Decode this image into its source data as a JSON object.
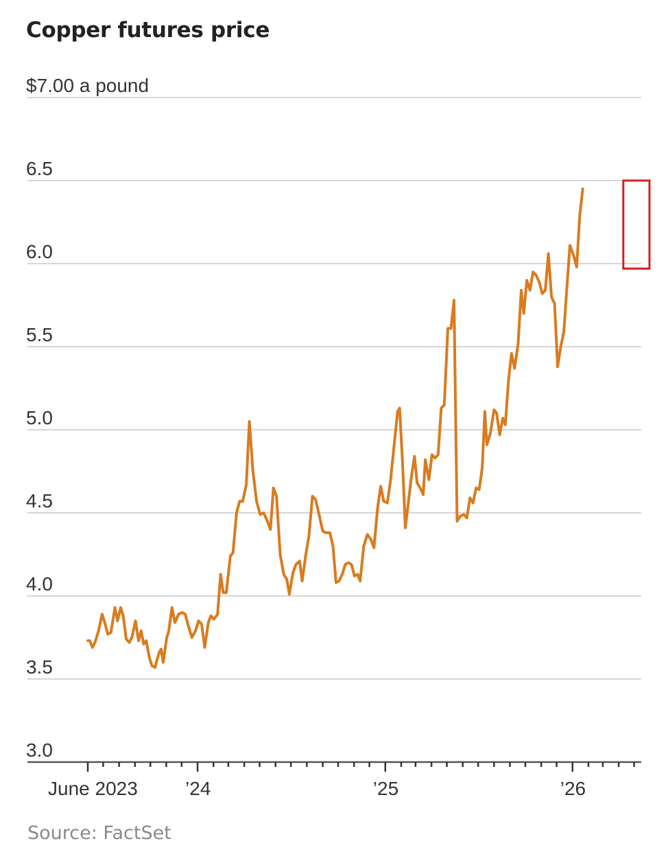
{
  "chart_data": {
    "type": "line",
    "title": "Copper futures price",
    "unit_label": "$7.00 a pound",
    "source": "Source: FactSet",
    "ylim": [
      3.0,
      7.0
    ],
    "y_ticks": [
      {
        "value": 7.0,
        "label": "$7.00 a pound"
      },
      {
        "value": 6.5,
        "label": "6.5"
      },
      {
        "value": 6.0,
        "label": "6.0"
      },
      {
        "value": 5.5,
        "label": "5.5"
      },
      {
        "value": 5.0,
        "label": "5.0"
      },
      {
        "value": 4.5,
        "label": "4.5"
      },
      {
        "value": 4.0,
        "label": "4.0"
      },
      {
        "value": 3.5,
        "label": "3.5"
      },
      {
        "value": 3.0,
        "label": "3.0"
      }
    ],
    "x_range": [
      "2023-06-01",
      "2026-05-15"
    ],
    "x_tick_labels": [
      {
        "date": "2023-06-01",
        "label": "June 2023"
      },
      {
        "date": "2024-01-01",
        "label": "’24"
      },
      {
        "date": "2025-01-01",
        "label": "’25"
      },
      {
        "date": "2026-01-01",
        "label": "’26"
      }
    ],
    "x_minor_ticks": [
      "2023-07-01",
      "2023-08-01",
      "2023-09-01",
      "2023-10-01",
      "2023-11-01",
      "2023-12-01",
      "2024-02-01",
      "2024-03-01",
      "2024-04-01",
      "2024-05-01",
      "2024-06-01",
      "2024-07-01",
      "2024-08-01",
      "2024-09-01",
      "2024-10-01",
      "2024-11-01",
      "2024-12-01",
      "2025-02-01",
      "2025-03-01",
      "2025-04-01",
      "2025-05-01",
      "2025-06-01",
      "2025-07-01",
      "2025-08-01",
      "2025-09-01",
      "2025-10-01",
      "2025-11-01",
      "2025-12-01",
      "2026-02-01",
      "2026-03-01",
      "2026-04-01",
      "2026-05-01"
    ],
    "grid": true,
    "line_color": "#d97b1f",
    "highlight_color": "#d32020",
    "highlight_range": {
      "x": [
        "2026-04-10",
        "2026-05-15"
      ],
      "y": [
        5.97,
        6.5
      ]
    },
    "series": [
      {
        "values": [
          [
            "2023-06-01",
            3.73
          ],
          [
            "2023-06-05",
            3.73
          ],
          [
            "2023-06-10",
            3.69
          ],
          [
            "2023-06-15",
            3.72
          ],
          [
            "2023-06-22",
            3.79
          ],
          [
            "2023-06-29",
            3.89
          ],
          [
            "2023-07-05",
            3.83
          ],
          [
            "2023-07-10",
            3.77
          ],
          [
            "2023-07-16",
            3.78
          ],
          [
            "2023-07-24",
            3.93
          ],
          [
            "2023-07-29",
            3.85
          ],
          [
            "2023-08-04",
            3.93
          ],
          [
            "2023-08-09",
            3.88
          ],
          [
            "2023-08-15",
            3.74
          ],
          [
            "2023-08-21",
            3.72
          ],
          [
            "2023-08-26",
            3.75
          ],
          [
            "2023-09-02",
            3.85
          ],
          [
            "2023-09-08",
            3.73
          ],
          [
            "2023-09-13",
            3.79
          ],
          [
            "2023-09-18",
            3.71
          ],
          [
            "2023-09-23",
            3.73
          ],
          [
            "2023-09-29",
            3.63
          ],
          [
            "2023-10-04",
            3.58
          ],
          [
            "2023-10-10",
            3.57
          ],
          [
            "2023-10-18",
            3.66
          ],
          [
            "2023-10-22",
            3.68
          ],
          [
            "2023-10-26",
            3.6
          ],
          [
            "2023-11-02",
            3.75
          ],
          [
            "2023-11-06",
            3.79
          ],
          [
            "2023-11-12",
            3.93
          ],
          [
            "2023-11-18",
            3.84
          ],
          [
            "2023-11-25",
            3.89
          ],
          [
            "2023-12-02",
            3.9
          ],
          [
            "2023-12-08",
            3.89
          ],
          [
            "2023-12-14",
            3.82
          ],
          [
            "2023-12-21",
            3.75
          ],
          [
            "2023-12-28",
            3.79
          ],
          [
            "2024-01-03",
            3.85
          ],
          [
            "2024-01-09",
            3.83
          ],
          [
            "2024-01-15",
            3.69
          ],
          [
            "2024-01-22",
            3.84
          ],
          [
            "2024-01-27",
            3.88
          ],
          [
            "2024-02-02",
            3.86
          ],
          [
            "2024-02-09",
            3.89
          ],
          [
            "2024-02-15",
            4.13
          ],
          [
            "2024-02-20",
            4.02
          ],
          [
            "2024-02-26",
            4.02
          ],
          [
            "2024-03-05",
            4.24
          ],
          [
            "2024-03-10",
            4.26
          ],
          [
            "2024-03-17",
            4.5
          ],
          [
            "2024-03-23",
            4.57
          ],
          [
            "2024-03-29",
            4.57
          ],
          [
            "2024-04-05",
            4.67
          ],
          [
            "2024-04-11",
            5.05
          ],
          [
            "2024-04-18",
            4.75
          ],
          [
            "2024-04-25",
            4.57
          ],
          [
            "2024-05-02",
            4.49
          ],
          [
            "2024-05-09",
            4.5
          ],
          [
            "2024-05-16",
            4.45
          ],
          [
            "2024-05-22",
            4.4
          ],
          [
            "2024-05-28",
            4.65
          ],
          [
            "2024-06-03",
            4.6
          ],
          [
            "2024-06-10",
            4.25
          ],
          [
            "2024-06-17",
            4.13
          ],
          [
            "2024-06-23",
            4.1
          ],
          [
            "2024-06-28",
            4.01
          ],
          [
            "2024-07-05",
            4.14
          ],
          [
            "2024-07-11",
            4.19
          ],
          [
            "2024-07-18",
            4.21
          ],
          [
            "2024-07-23",
            4.09
          ],
          [
            "2024-07-30",
            4.25
          ],
          [
            "2024-08-05",
            4.36
          ],
          [
            "2024-08-12",
            4.6
          ],
          [
            "2024-08-18",
            4.58
          ],
          [
            "2024-08-25",
            4.49
          ],
          [
            "2024-09-01",
            4.39
          ],
          [
            "2024-09-08",
            4.38
          ],
          [
            "2024-09-15",
            4.38
          ],
          [
            "2024-09-21",
            4.3
          ],
          [
            "2024-09-27",
            4.08
          ],
          [
            "2024-10-03",
            4.09
          ],
          [
            "2024-10-09",
            4.13
          ],
          [
            "2024-10-15",
            4.19
          ],
          [
            "2024-10-21",
            4.2
          ],
          [
            "2024-10-27",
            4.19
          ],
          [
            "2024-11-02",
            4.12
          ],
          [
            "2024-11-08",
            4.13
          ],
          [
            "2024-11-13",
            4.09
          ],
          [
            "2024-11-20",
            4.3
          ],
          [
            "2024-11-27",
            4.37
          ],
          [
            "2024-12-04",
            4.34
          ],
          [
            "2024-12-10",
            4.29
          ],
          [
            "2024-12-17",
            4.53
          ],
          [
            "2024-12-23",
            4.66
          ],
          [
            "2024-12-29",
            4.57
          ],
          [
            "2025-01-05",
            4.56
          ],
          [
            "2025-01-11",
            4.69
          ],
          [
            "2025-01-18",
            4.9
          ],
          [
            "2025-01-25",
            5.11
          ],
          [
            "2025-01-29",
            5.13
          ],
          [
            "2025-02-04",
            4.78
          ],
          [
            "2025-02-09",
            4.41
          ],
          [
            "2025-02-15",
            4.56
          ],
          [
            "2025-02-21",
            4.72
          ],
          [
            "2025-02-27",
            4.84
          ],
          [
            "2025-03-04",
            4.68
          ],
          [
            "2025-03-10",
            4.65
          ],
          [
            "2025-03-16",
            4.61
          ],
          [
            "2025-03-20",
            4.82
          ],
          [
            "2025-03-27",
            4.7
          ],
          [
            "2025-04-02",
            4.85
          ],
          [
            "2025-04-08",
            4.83
          ],
          [
            "2025-04-14",
            4.85
          ],
          [
            "2025-04-20",
            5.13
          ],
          [
            "2025-04-26",
            5.15
          ],
          [
            "2025-05-03",
            5.61
          ],
          [
            "2025-05-09",
            5.61
          ],
          [
            "2025-05-15",
            5.78
          ],
          [
            "2025-05-21",
            4.45
          ],
          [
            "2025-05-27",
            4.48
          ],
          [
            "2025-06-03",
            4.49
          ],
          [
            "2025-06-09",
            4.47
          ],
          [
            "2025-06-15",
            4.59
          ],
          [
            "2025-06-21",
            4.56
          ],
          [
            "2025-06-27",
            4.65
          ],
          [
            "2025-07-03",
            4.64
          ],
          [
            "2025-07-09",
            4.77
          ],
          [
            "2025-07-14",
            5.11
          ],
          [
            "2025-07-18",
            4.91
          ],
          [
            "2025-07-25",
            4.98
          ],
          [
            "2025-08-01",
            5.12
          ],
          [
            "2025-08-06",
            5.1
          ],
          [
            "2025-08-12",
            4.97
          ],
          [
            "2025-08-18",
            5.07
          ],
          [
            "2025-08-23",
            5.03
          ],
          [
            "2025-08-29",
            5.29
          ],
          [
            "2025-09-04",
            5.46
          ],
          [
            "2025-09-10",
            5.37
          ],
          [
            "2025-09-17",
            5.52
          ],
          [
            "2025-09-23",
            5.84
          ],
          [
            "2025-09-28",
            5.7
          ],
          [
            "2025-10-04",
            5.9
          ],
          [
            "2025-10-10",
            5.84
          ],
          [
            "2025-10-16",
            5.95
          ],
          [
            "2025-10-22",
            5.93
          ],
          [
            "2025-10-28",
            5.89
          ],
          [
            "2025-11-03",
            5.82
          ],
          [
            "2025-11-09",
            5.84
          ],
          [
            "2025-11-15",
            6.06
          ],
          [
            "2025-11-21",
            5.8
          ],
          [
            "2025-11-27",
            5.76
          ],
          [
            "2025-12-03",
            5.38
          ],
          [
            "2025-12-09",
            5.5
          ],
          [
            "2025-12-15",
            5.59
          ],
          [
            "2025-12-21",
            5.86
          ],
          [
            "2025-12-27",
            6.11
          ],
          [
            "2026-01-03",
            6.05
          ],
          [
            "2026-01-09",
            5.98
          ],
          [
            "2026-01-15",
            6.29
          ],
          [
            "2026-01-21",
            6.45
          ]
        ]
      }
    ]
  }
}
